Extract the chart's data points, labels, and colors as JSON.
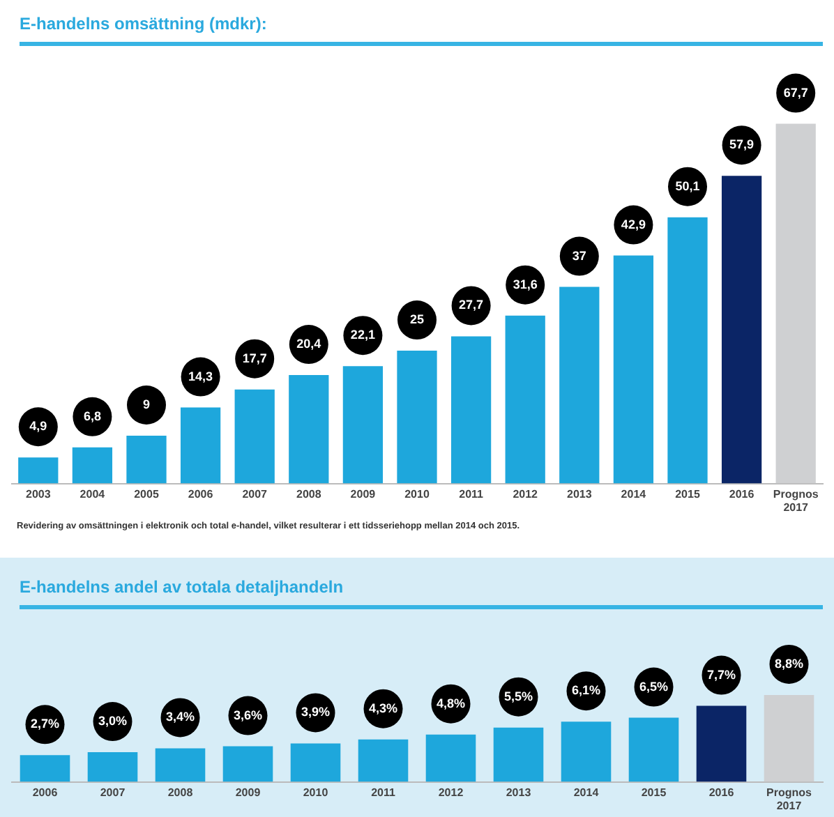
{
  "chart_data": [
    {
      "type": "bar",
      "title": "E-handelns omsättning (mdkr):",
      "categories": [
        "2003",
        "2004",
        "2005",
        "2006",
        "2007",
        "2008",
        "2009",
        "2010",
        "2011",
        "2012",
        "2013",
        "2014",
        "2015",
        "2016",
        "Prognos 2017"
      ],
      "values": [
        4.9,
        6.8,
        9,
        14.3,
        17.7,
        20.4,
        22.1,
        25,
        27.7,
        31.6,
        37,
        42.9,
        50.1,
        57.9,
        67.7
      ],
      "value_labels": [
        "4,9",
        "6,8",
        "9",
        "14,3",
        "17,7",
        "20,4",
        "22,1",
        "25",
        "27,7",
        "31,6",
        "37",
        "42,9",
        "50,1",
        "57,9",
        "67,7"
      ],
      "colors": [
        "#1ea7dc",
        "#1ea7dc",
        "#1ea7dc",
        "#1ea7dc",
        "#1ea7dc",
        "#1ea7dc",
        "#1ea7dc",
        "#1ea7dc",
        "#1ea7dc",
        "#1ea7dc",
        "#1ea7dc",
        "#1ea7dc",
        "#1ea7dc",
        "#0b2566",
        "#cfd0d2"
      ],
      "tick_labels": "x",
      "grid": false,
      "legend": false,
      "annotations": [
        "Revidering av omsättningen i elektronik och total e-handel, vilket resulterar i ett tidsseriehopp mellan 2014 och 2015."
      ]
    },
    {
      "type": "bar",
      "title": "E-handelns andel av totala detaljhandeln",
      "categories": [
        "2006",
        "2007",
        "2008",
        "2009",
        "2010",
        "2011",
        "2012",
        "2013",
        "2014",
        "2015",
        "2016",
        "Prognos 2017"
      ],
      "values": [
        2.7,
        3.0,
        3.4,
        3.6,
        3.9,
        4.3,
        4.8,
        5.5,
        6.1,
        6.5,
        7.7,
        8.8
      ],
      "value_labels": [
        "2,7%",
        "3,0%",
        "3,4%",
        "3,6%",
        "3,9%",
        "4,3%",
        "4,8%",
        "5,5%",
        "6,1%",
        "6,5%",
        "7,7%",
        "8,8%"
      ],
      "colors": [
        "#1ea7dc",
        "#1ea7dc",
        "#1ea7dc",
        "#1ea7dc",
        "#1ea7dc",
        "#1ea7dc",
        "#1ea7dc",
        "#1ea7dc",
        "#1ea7dc",
        "#1ea7dc",
        "#0b2566",
        "#cfd0d2"
      ],
      "tick_labels": "x",
      "grid": false,
      "legend": false
    }
  ]
}
